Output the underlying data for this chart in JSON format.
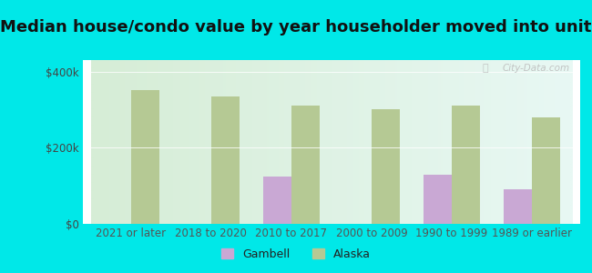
{
  "title": "Median house/condo value by year householder moved into unit",
  "categories": [
    "2021 or later",
    "2018 to 2020",
    "2010 to 2017",
    "2000 to 2009",
    "1990 to 1999",
    "1989 or earlier"
  ],
  "gambell_values": [
    0,
    0,
    125000,
    0,
    130000,
    90000
  ],
  "alaska_values": [
    350000,
    335000,
    310000,
    300000,
    310000,
    280000
  ],
  "gambell_color": "#c9a8d4",
  "alaska_color": "#b5c994",
  "background_outer": "#00e8e8",
  "background_inner_left": "#d6edd6",
  "background_inner_right": "#e8f8f4",
  "ylabel_ticks": [
    "$0",
    "$200k",
    "$400k"
  ],
  "ytick_values": [
    0,
    200000,
    400000
  ],
  "ylim": [
    0,
    430000
  ],
  "bar_width": 0.35,
  "title_fontsize": 13,
  "tick_fontsize": 8.5,
  "legend_fontsize": 9,
  "watermark_text": "City-Data.com"
}
